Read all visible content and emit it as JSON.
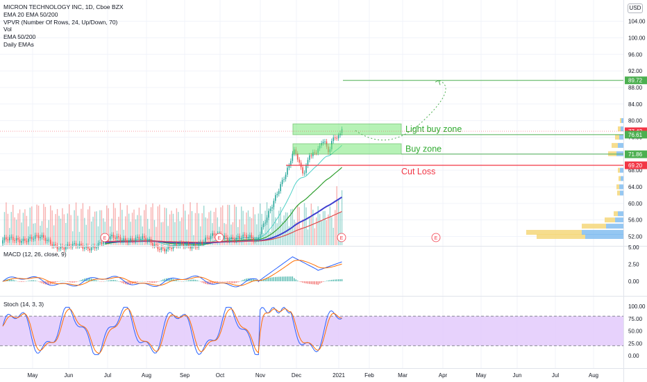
{
  "header": {
    "title": "MICRON TECHNOLOGY INC, 1D, Cboe BZX",
    "indicators": [
      "EMA 20 EMA 50/200",
      "VPVR (Number Of Rows, 24, Up/Down, 70)",
      "Vol",
      "EMA 50/200",
      "Daily EMAs"
    ],
    "currency": "USD"
  },
  "colors": {
    "up": "#26a69a",
    "down": "#ef5350",
    "ema_fast": "#4dd0c6",
    "ema_mid": "#2e9e2e",
    "ema_slow": "#3f3fd0",
    "ema_200": "#e04b4b",
    "zone_fill": "#7be87b",
    "zone_stroke": "#2eaa2e",
    "cut_loss": "#f23645",
    "target": "#4caf50",
    "macd": "#2962ff",
    "signal": "#ff6d00",
    "stoch_k": "#2962ff",
    "stoch_d": "#ff6d00",
    "stoch_band": "#e1c7fb",
    "vp_up": "#82bdf0",
    "vp_down": "#f5d77a"
  },
  "chart_data": [
    {
      "type": "candlestick",
      "title": "MICRON TECHNOLOGY INC, 1D, Cboe BZX",
      "y_ticks": [
        52,
        56,
        60,
        64,
        68,
        72,
        76,
        80,
        84,
        88,
        92,
        96,
        100,
        104
      ],
      "ylim": [
        49.5,
        104.5
      ],
      "x_ticks": [
        "May",
        "Jun",
        "Jul",
        "Aug",
        "Sep",
        "Oct",
        "Nov",
        "Dec",
        "2021",
        "Feb",
        "Mar",
        "Apr",
        "May",
        "Jun",
        "Jul",
        "Aug"
      ],
      "price_labels": [
        {
          "value": 89.72,
          "text": "89.72",
          "color": "#4caf50"
        },
        {
          "value": 77.42,
          "text": "77.42",
          "color": "#f23645"
        },
        {
          "value": 76.61,
          "text": "76.61",
          "color": "#4caf50"
        },
        {
          "value": 71.86,
          "text": "71.86",
          "color": "#4caf50"
        },
        {
          "value": 69.2,
          "text": "69.20",
          "color": "#f23645"
        }
      ],
      "zones": [
        {
          "label": "Light buy zone",
          "low": 76.6,
          "high": 79.2
        },
        {
          "label": "Buy zone",
          "low": 71.9,
          "high": 74.4
        }
      ],
      "levels": [
        {
          "label": "Cut Loss",
          "value": 69.2
        },
        {
          "label": "",
          "value": 89.72
        }
      ],
      "earnings_markers": [
        "E",
        "E",
        "E",
        "E"
      ],
      "series": [
        {
          "name": "EMA 20"
        },
        {
          "name": "EMA 50"
        },
        {
          "name": "EMA 200"
        }
      ]
    },
    {
      "type": "line",
      "title": "MACD (12, 26, close, 9)",
      "y_ticks": [
        "5.00",
        "2.50",
        "0.00"
      ],
      "ylim": [
        -2.5,
        5.5
      ]
    },
    {
      "type": "line",
      "title": "Stoch (14, 3, 3)",
      "y_ticks": [
        "100.00",
        "75.00",
        "50.00",
        "25.00",
        "0.00"
      ],
      "ylim": [
        -5,
        105
      ],
      "bands": [
        20,
        80
      ]
    }
  ]
}
